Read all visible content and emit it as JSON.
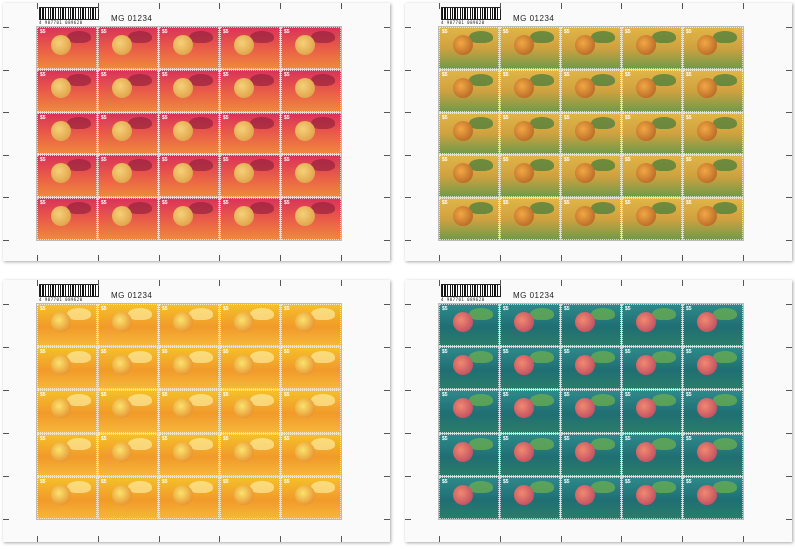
{
  "sheets": [
    {
      "serial": "MG 01234",
      "barcode_digits": "4 987701 089620",
      "stamp_count": 25,
      "colors": {
        "primary": "#d8325a",
        "secondary": "#f08a3c"
      },
      "motif": "cat"
    },
    {
      "serial": "MG 01234",
      "barcode_digits": "4 987701 089620",
      "stamp_count": 25,
      "colors": {
        "primary": "#e2b548",
        "secondary": "#6f9a4a"
      },
      "motif": "tiger"
    },
    {
      "serial": "MG 01234",
      "barcode_digits": "4 987701 089620",
      "stamp_count": 25,
      "colors": {
        "primary": "#f4c12a",
        "secondary": "#f19a2a"
      },
      "motif": "tiger"
    },
    {
      "serial": "MG 01234",
      "barcode_digits": "4 987701 089620",
      "stamp_count": 25,
      "colors": {
        "primary": "#2f8a8c",
        "secondary": "#b33c5e"
      },
      "motif": "cat"
    }
  ],
  "stamp_value": "$5"
}
